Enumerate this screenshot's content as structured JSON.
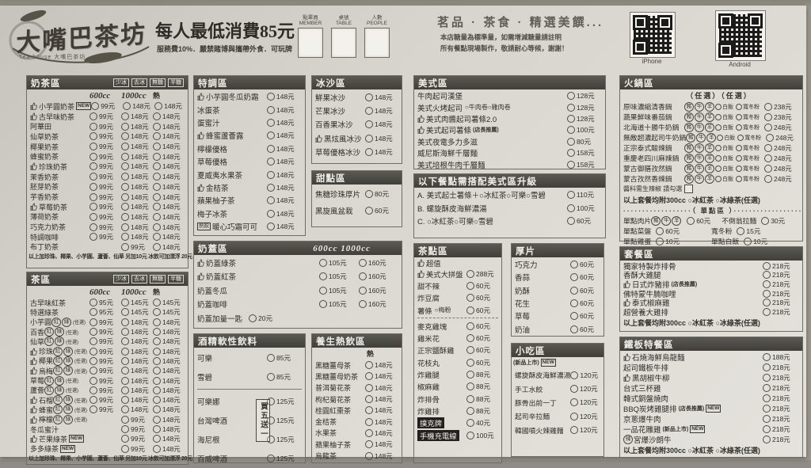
{
  "colors": {
    "header_bar": "#4a4843",
    "paper": "#d9d6cf",
    "ink": "#34322e"
  },
  "header": {
    "logo_main": "大嘴巴茶坊",
    "logo_sub": "Tea house 大嘴巴茶坊",
    "min_charge": "每人最低消費85元",
    "rules": "服務費10%．嚴禁賭博與攜帶外食．可玩牌",
    "order_fields": [
      {
        "zh": "點單員",
        "en": "MEMBER"
      },
      {
        "zh": "桌號",
        "en": "TABLE"
      },
      {
        "zh": "人數",
        "en": "PEOPLE"
      }
    ],
    "tagline": "茗品 · 茶食 · 精選美饌...",
    "note1": "本店糖量為標準量，如需增減糖量請註明",
    "note2": "所有餐點現場製作，敬請耐心等候，謝謝！",
    "qr_labels": [
      "iPhone",
      "Android"
    ]
  },
  "shared": {
    "meat_opts": [
      "豬",
      "牛",
      "羊"
    ],
    "side_opts": [
      "白飯",
      "寬冬粉"
    ],
    "rg_opts": [
      "紅",
      "綠"
    ],
    "rg_note": "(任選)"
  },
  "sections": {
    "milk_tea": {
      "title": "奶茶區",
      "tags": [
        "少冰",
        "去冰",
        "無糖",
        "半糖"
      ],
      "size_cols": [
        "600cc",
        "1000cc",
        "熱"
      ],
      "items": [
        {
          "n": "小芋圓奶茶",
          "b": 1,
          "new": 1,
          "p": [
            "99元",
            "148元",
            "148元"
          ]
        },
        {
          "n": "古早味奶茶",
          "b": 1,
          "p": [
            "99元",
            "148元",
            "148元"
          ]
        },
        {
          "n": "阿華田",
          "p": [
            "99元",
            "148元",
            "148元"
          ]
        },
        {
          "n": "仙草奶茶",
          "p": [
            "99元",
            "148元",
            "148元"
          ]
        },
        {
          "n": "椰果奶茶",
          "p": [
            "99元",
            "148元",
            "148元"
          ]
        },
        {
          "n": "蜂蜜奶茶",
          "p": [
            "99元",
            "148元",
            "148元"
          ]
        },
        {
          "n": "珍珠奶茶",
          "b": 1,
          "p": [
            "99元",
            "148元",
            "148元"
          ]
        },
        {
          "n": "茉香奶茶",
          "p": [
            "99元",
            "148元",
            "148元"
          ]
        },
        {
          "n": "胚芽奶茶",
          "p": [
            "99元",
            "148元",
            "148元"
          ]
        },
        {
          "n": "芋香奶茶",
          "p": [
            "99元",
            "148元",
            "148元"
          ]
        },
        {
          "n": "草莓奶茶",
          "b": 1,
          "p": [
            "99元",
            "148元",
            "148元"
          ]
        },
        {
          "n": "薄荷奶茶",
          "p": [
            "99元",
            "148元",
            "148元"
          ]
        },
        {
          "n": "巧克力奶茶",
          "p": [
            "99元",
            "148元",
            "148元"
          ]
        },
        {
          "n": "特調咖啡",
          "p": [
            "99元",
            "148元",
            "148元"
          ]
        },
        {
          "n": "布丁奶茶",
          "p": [
            "99元",
            "148元"
          ]
        }
      ],
      "footer": "以上加珍珠、椰果、小芋圓、蘆薈、仙草 另加10元 冰飲可加漂浮 20元"
    },
    "tea": {
      "title": "茶區",
      "tags": [
        "少冰",
        "去冰",
        "無糖",
        "半糖"
      ],
      "size_cols": [
        "600cc",
        "1000cc",
        "熱"
      ],
      "items": [
        {
          "n": "古早味紅茶",
          "p": [
            "95元",
            "145元",
            "145元"
          ]
        },
        {
          "n": "特選綠茶",
          "p": [
            "95元",
            "145元",
            "145元"
          ]
        },
        {
          "n": "小芋圓",
          "rg": 1,
          "p": [
            "99元",
            "148元",
            "148元"
          ]
        },
        {
          "n": "百香",
          "rg": 1,
          "p": [
            "99元",
            "148元",
            "148元"
          ]
        },
        {
          "n": "仙草",
          "rg": 1,
          "p": [
            "99元",
            "148元",
            "148元"
          ]
        },
        {
          "n": "珍珠",
          "b": 1,
          "rg": 1,
          "p": [
            "99元",
            "148元",
            "148元"
          ]
        },
        {
          "n": "椰果",
          "b": 1,
          "rg": 1,
          "p": [
            "99元",
            "148元",
            "148元"
          ]
        },
        {
          "n": "烏梅",
          "b": 1,
          "rg": 1,
          "p": [
            "99元",
            "148元",
            "148元"
          ]
        },
        {
          "n": "草莓",
          "rg": 1,
          "p": [
            "99元",
            "148元",
            "148元"
          ]
        },
        {
          "n": "蘆薈",
          "rg": 1,
          "p": [
            "99元",
            "148元",
            "148元"
          ]
        },
        {
          "n": "石榴",
          "b": 1,
          "rg": 1,
          "p": [
            "99元",
            "148元",
            "148元"
          ]
        },
        {
          "n": "蜂蜜",
          "b": 1,
          "rg": 1,
          "p": [
            "99元",
            "148元",
            "148元"
          ]
        },
        {
          "n": "檸檬",
          "b": 1,
          "rg": 1,
          "p": [
            "99元",
            "148元"
          ]
        },
        {
          "n": "冬瓜蜜汁",
          "p": [
            "99元",
            "148元"
          ]
        },
        {
          "n": "芒果綠茶",
          "b": 1,
          "new": 1,
          "p": [
            "99元",
            "148元"
          ]
        },
        {
          "n": "多多綠茶",
          "new": 1,
          "p": [
            "99元",
            "148元"
          ]
        }
      ],
      "footer": "以上加珍珠、椰果、小芋圓、蘆薈、仙草 另加10元 冰飲可加漂浮 20元"
    },
    "special": {
      "title": "特調區",
      "items": [
        {
          "n": "小芋圓冬瓜奶霜",
          "b": 1,
          "p": [
            "148元"
          ]
        },
        {
          "n": "冰蛋茶",
          "p": [
            "148元"
          ]
        },
        {
          "n": "蛋蜜汁",
          "p": [
            "148元"
          ]
        },
        {
          "n": "蜂蜜蘆薈露",
          "b": 1,
          "p": [
            "148元"
          ]
        },
        {
          "n": "檸檬優格",
          "p": [
            "148元"
          ]
        },
        {
          "n": "草莓優格",
          "p": [
            "148元"
          ]
        },
        {
          "n": "夏威夷水果茶",
          "p": [
            "148元"
          ]
        },
        {
          "n": "金桔茶",
          "b": 1,
          "p": [
            "148元"
          ]
        },
        {
          "n": "蘋果柚子茶",
          "p": [
            "148元"
          ]
        },
        {
          "n": "梅子冰茶",
          "p": [
            "148元"
          ]
        },
        {
          "n": "暖心巧霜可可",
          "pretag": "熱飲",
          "p": [
            "148元"
          ]
        }
      ]
    },
    "milk_foam": {
      "title": "奶蓋區",
      "head_right": "600cc   1000cc",
      "items": [
        {
          "n": "奶蓋綠茶",
          "b": 1,
          "p": [
            "105元",
            "160元"
          ]
        },
        {
          "n": "奶蓋紅茶",
          "b": 1,
          "p": [
            "105元",
            "160元"
          ]
        },
        {
          "n": "奶蓋冬瓜",
          "p": [
            "105元",
            "160元"
          ]
        },
        {
          "n": "奶蓋咖啡",
          "p": [
            "105元",
            "160元"
          ]
        },
        {
          "n": "奶蓋加量一匙",
          "inline": 1,
          "p": [
            "20元"
          ]
        }
      ]
    },
    "alcohol": {
      "title": "酒精軟性飲料",
      "vertical_badge": "買五送一",
      "divider_after": 1,
      "items": [
        {
          "n": "可樂",
          "p": [
            "85元"
          ]
        },
        {
          "n": "雪碧",
          "p": [
            "85元"
          ]
        },
        {
          "n": "可樂娜",
          "p": [
            "125元"
          ]
        },
        {
          "n": "台灣啤酒",
          "p": [
            "125元"
          ]
        },
        {
          "n": "海尼根",
          "p": [
            "125元"
          ]
        },
        {
          "n": "百威啤酒",
          "p": [
            "125元"
          ]
        }
      ]
    },
    "smoothie": {
      "title": "冰沙區",
      "items": [
        {
          "n": "鮮果冰沙",
          "p": [
            "148元"
          ]
        },
        {
          "n": "芒果冰沙",
          "p": [
            "148元"
          ]
        },
        {
          "n": "百香果冰沙",
          "p": [
            "148元"
          ]
        },
        {
          "n": "黑炫風冰沙",
          "b": 1,
          "p": [
            "148元"
          ]
        },
        {
          "n": "草莓優格冰沙",
          "p": [
            "148元"
          ]
        }
      ]
    },
    "dessert": {
      "title": "甜點區",
      "items": [
        {
          "n": "焦糖珍珠厚片",
          "p": [
            "80元"
          ]
        },
        {
          "n": "黑旋風盆栽",
          "p": [
            "60元"
          ]
        }
      ]
    },
    "hot_drinks": {
      "title": "養生熱飲區",
      "size_cols": [
        "熱"
      ],
      "items": [
        {
          "n": "黑糖薑母茶",
          "p": [
            "148元"
          ]
        },
        {
          "n": "黑糖薑母奶茶",
          "p": [
            "148元"
          ]
        },
        {
          "n": "普洱菊花茶",
          "p": [
            "148元"
          ]
        },
        {
          "n": "枸杞菊花茶",
          "p": [
            "148元"
          ]
        },
        {
          "n": "桂圓紅棗茶",
          "p": [
            "148元"
          ]
        },
        {
          "n": "金桔茶",
          "p": [
            "148元"
          ]
        },
        {
          "n": "水果茶",
          "p": [
            "148元"
          ]
        },
        {
          "n": "蘋果柚子茶",
          "p": [
            "148元"
          ]
        },
        {
          "n": "烏龍茶",
          "p": [
            "148元"
          ]
        }
      ]
    },
    "american": {
      "title": "美式區",
      "items": [
        {
          "n": "牛肉起司漢堡",
          "p": [
            "128元"
          ]
        },
        {
          "n": "美式火烤起司",
          "opts": "○牛肉卷○雞肉卷",
          "p": [
            "128元"
          ]
        },
        {
          "n": "美式肉醬起司薯條2.0",
          "b": 1,
          "p": [
            "128元"
          ]
        },
        {
          "n": "美式起司薯條",
          "note": "(店長推薦)",
          "b": 1,
          "p": [
            "100元"
          ]
        },
        {
          "n": "美式夜電多力多滋",
          "p": [
            "80元"
          ]
        },
        {
          "n": "威尼斯海鮮千層麵",
          "p": [
            "158元"
          ]
        },
        {
          "n": "美式培根牛肉千層麵",
          "p": [
            "158元"
          ]
        }
      ]
    },
    "upgrade": {
      "title": "以下餐點需搭配美式區升級",
      "items": [
        {
          "n": "A. 美式起士薯條＋○冰紅茶○可樂○雪碧",
          "p": [
            "110元"
          ]
        },
        {
          "n": "B. 螺旋酥皮海鮮濃湯",
          "p": [
            "100元"
          ]
        },
        {
          "n": "C. ○冰紅茶○可樂○雪碧",
          "p": [
            "60元"
          ]
        }
      ]
    },
    "tea_snacks": {
      "title": "茶點區",
      "divider_after": 3,
      "items": [
        {
          "n": "美式大拼盤",
          "pre": "超值",
          "b": 1,
          "p": [
            "288元"
          ]
        },
        {
          "n": "甜不辣",
          "p": [
            "60元"
          ]
        },
        {
          "n": "炸豆腐",
          "p": [
            "60元"
          ]
        },
        {
          "n": "薯條",
          "opts": "○梅粉",
          "p": [
            "60元"
          ]
        },
        {
          "n": "麥克雞塊",
          "p": [
            "60元"
          ]
        },
        {
          "n": "雞米花",
          "p": [
            "60元"
          ]
        },
        {
          "n": "正宗鹽酥雞",
          "p": [
            "60元"
          ]
        },
        {
          "n": "花枝丸",
          "p": [
            "60元"
          ]
        },
        {
          "n": "炸雞腿",
          "p": [
            "88元"
          ]
        },
        {
          "n": "椒麻雞",
          "p": [
            "88元"
          ]
        },
        {
          "n": "炸排骨",
          "p": [
            "88元"
          ]
        },
        {
          "n": "炸雞排",
          "p": [
            "88元"
          ]
        },
        {
          "n": "撲克牌",
          "inv": 1,
          "p": [
            "40元"
          ]
        },
        {
          "n": "手機充電線",
          "inv": 1,
          "p": [
            "100元"
          ]
        }
      ]
    },
    "thick_toast": {
      "title": "厚片",
      "items": [
        {
          "n": "巧克力",
          "p": [
            "60元"
          ]
        },
        {
          "n": "香蒜",
          "p": [
            "60元"
          ]
        },
        {
          "n": "奶酥",
          "p": [
            "60元"
          ]
        },
        {
          "n": "花生",
          "p": [
            "60元"
          ]
        },
        {
          "n": "草莓",
          "p": [
            "60元"
          ]
        },
        {
          "n": "奶油",
          "p": [
            "60元"
          ]
        }
      ]
    },
    "snacks": {
      "title": "小吃區",
      "pre_note": "(新品上市)",
      "pre_note_tag": "NEW",
      "items": [
        {
          "n": "螺旋酥皮海鮮濃湯",
          "p": [
            "120元"
          ]
        },
        {
          "n": "手工水餃",
          "p": [
            "120元"
          ]
        },
        {
          "n": "豚骨出前一丁",
          "p": [
            "120元"
          ]
        },
        {
          "n": "起司辛拉麵",
          "p": [
            "120元"
          ]
        },
        {
          "n": "韓國噴火辣雞麵",
          "p": [
            "120元"
          ]
        }
      ]
    },
    "hotpot": {
      "title": "火鍋區",
      "subhead": "（任選）（任選）",
      "items": [
        {
          "n": "原味濃縮清香鍋",
          "meats": 1,
          "sides": 1,
          "p": [
            "238元"
          ]
        },
        {
          "n": "蔬果鮮味番茄鍋",
          "meats": 1,
          "sides": 1,
          "p": [
            "238元"
          ]
        },
        {
          "n": "北海道十勝牛奶鍋",
          "meats": 1,
          "sides": 1,
          "p": [
            "248元"
          ]
        },
        {
          "n": "無敵超濃起司牛奶鍋",
          "meats": 1,
          "sides": 1,
          "p": [
            "248元"
          ]
        },
        {
          "n": "正宗泰式酸辣鍋",
          "meats": 1,
          "sides": 1,
          "p": [
            "248元"
          ]
        },
        {
          "n": "重慶老四川麻辣鍋",
          "meats": 1,
          "sides": 1,
          "p": [
            "248元"
          ]
        },
        {
          "n": "蒙古御膳孜然鍋",
          "meats": 1,
          "sides": 1,
          "p": [
            "248元"
          ]
        },
        {
          "n": "蒙古孜然香辣鍋",
          "meats": 1,
          "sides": 1,
          "p": [
            "248元"
          ]
        }
      ],
      "check_note": "醬料需生辣椒 請勾選",
      "drink_note": "以上套餐均附300cc ○冰紅茶  ○冰綠茶(任選)",
      "divider_label": "··················（ 單點區 ）··················",
      "singles": [
        [
          {
            "n": "單點肉片",
            "meats": 1,
            "p": "60元"
          },
          {
            "n": "不倒翁拉麵",
            "p": "30元"
          }
        ],
        [
          {
            "n": "單點菜盤",
            "p": "60元"
          },
          {
            "n": "寬冬粉",
            "p": "15元"
          }
        ],
        [
          {
            "n": "單點雞蛋",
            "p": "10元"
          },
          {
            "n": "單點白飯",
            "p": "10元"
          }
        ]
      ]
    },
    "set_meals": {
      "title": "套餐區",
      "items": [
        {
          "n": "獨家特製炸排骨",
          "p": [
            "218元"
          ]
        },
        {
          "n": "香酥大雞腿",
          "p": [
            "218元"
          ]
        },
        {
          "n": "日式炸豬排",
          "note": "(店長推薦)",
          "b": 1,
          "p": [
            "218元"
          ]
        },
        {
          "n": "佛特蒙牛腩咖哩",
          "p": [
            "218元"
          ]
        },
        {
          "n": "泰式椒麻雞",
          "b": 1,
          "p": [
            "218元"
          ]
        },
        {
          "n": "超營養大雞排",
          "p": [
            "218元"
          ]
        }
      ],
      "drink_note": "以上套餐均附300cc ○冰紅茶  ○冰綠茶(任選)"
    },
    "teppan": {
      "title": "鐵板特餐區",
      "items": [
        {
          "n": "石燒海鮮烏龍麵",
          "b": 1,
          "p": [
            "188元"
          ]
        },
        {
          "n": "起司鐵板牛排",
          "p": [
            "218元"
          ]
        },
        {
          "n": "黑胡椒牛柳",
          "b": 1,
          "p": [
            "218元"
          ]
        },
        {
          "n": "台式三杯雞",
          "p": [
            "218元"
          ]
        },
        {
          "n": "韓式銅盤燒肉",
          "p": [
            "218元"
          ]
        },
        {
          "n": "BBQ炭烤雞腿排",
          "note": "(店長推薦)",
          "new": 1,
          "p": [
            "218元"
          ]
        },
        {
          "n": "京蔥爆牛肉",
          "p": [
            "218元"
          ]
        },
        {
          "n": "一品花雕雞",
          "note": "(新品上市)",
          "new": 1,
          "p": [
            "218元"
          ]
        },
        {
          "n": "宮爆沙朗牛",
          "spicy": "辣",
          "p": [
            "218元"
          ]
        }
      ],
      "drink_note": "以上套餐均附300cc ○冰紅茶  ○冰綠茶(任選)"
    }
  }
}
